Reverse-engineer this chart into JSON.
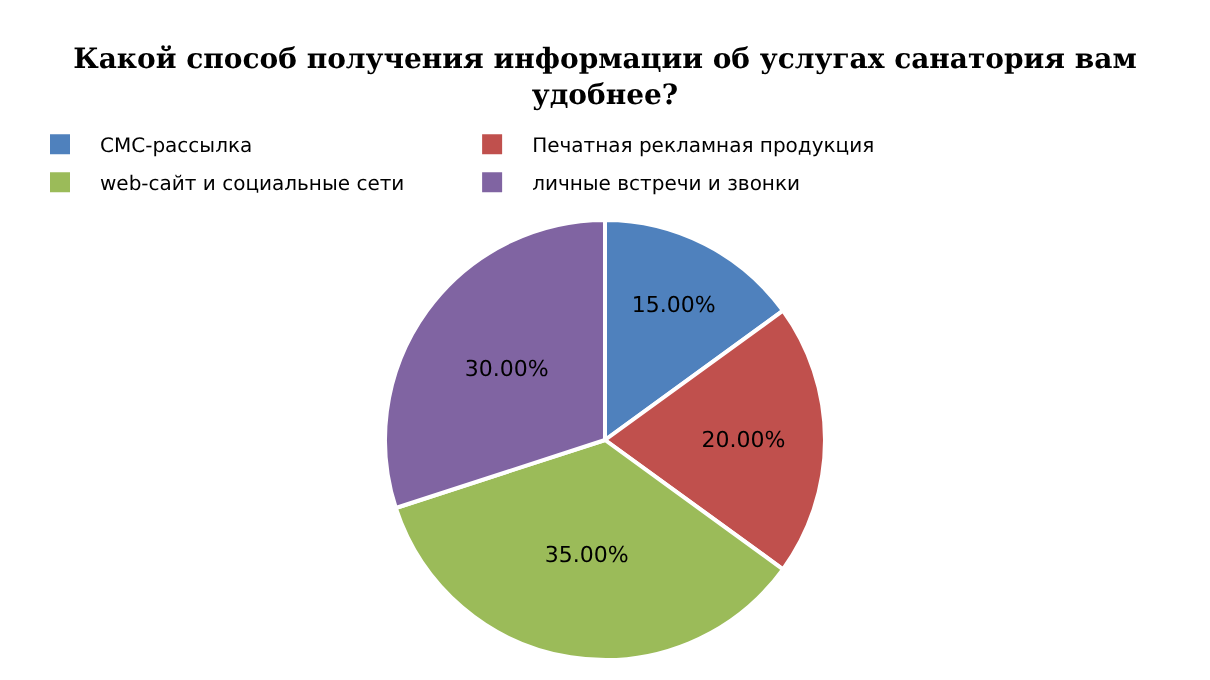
{
  "chart_data": {
    "type": "pie",
    "title": "Какой способ получения информации об услугах санатория вам удобнее?",
    "categories": [
      "СМС-рассылка",
      "Печатная рекламная продукция",
      "web-сайт и социальные сети",
      "личные встречи и звонки"
    ],
    "values": [
      15,
      20,
      35,
      30
    ],
    "value_labels": [
      "15.00%",
      "20.00%",
      "35.00%",
      "30.00%"
    ],
    "colors": [
      "#4f81bd",
      "#c0504d",
      "#9bbb59",
      "#8064a2"
    ],
    "legend": "top"
  }
}
